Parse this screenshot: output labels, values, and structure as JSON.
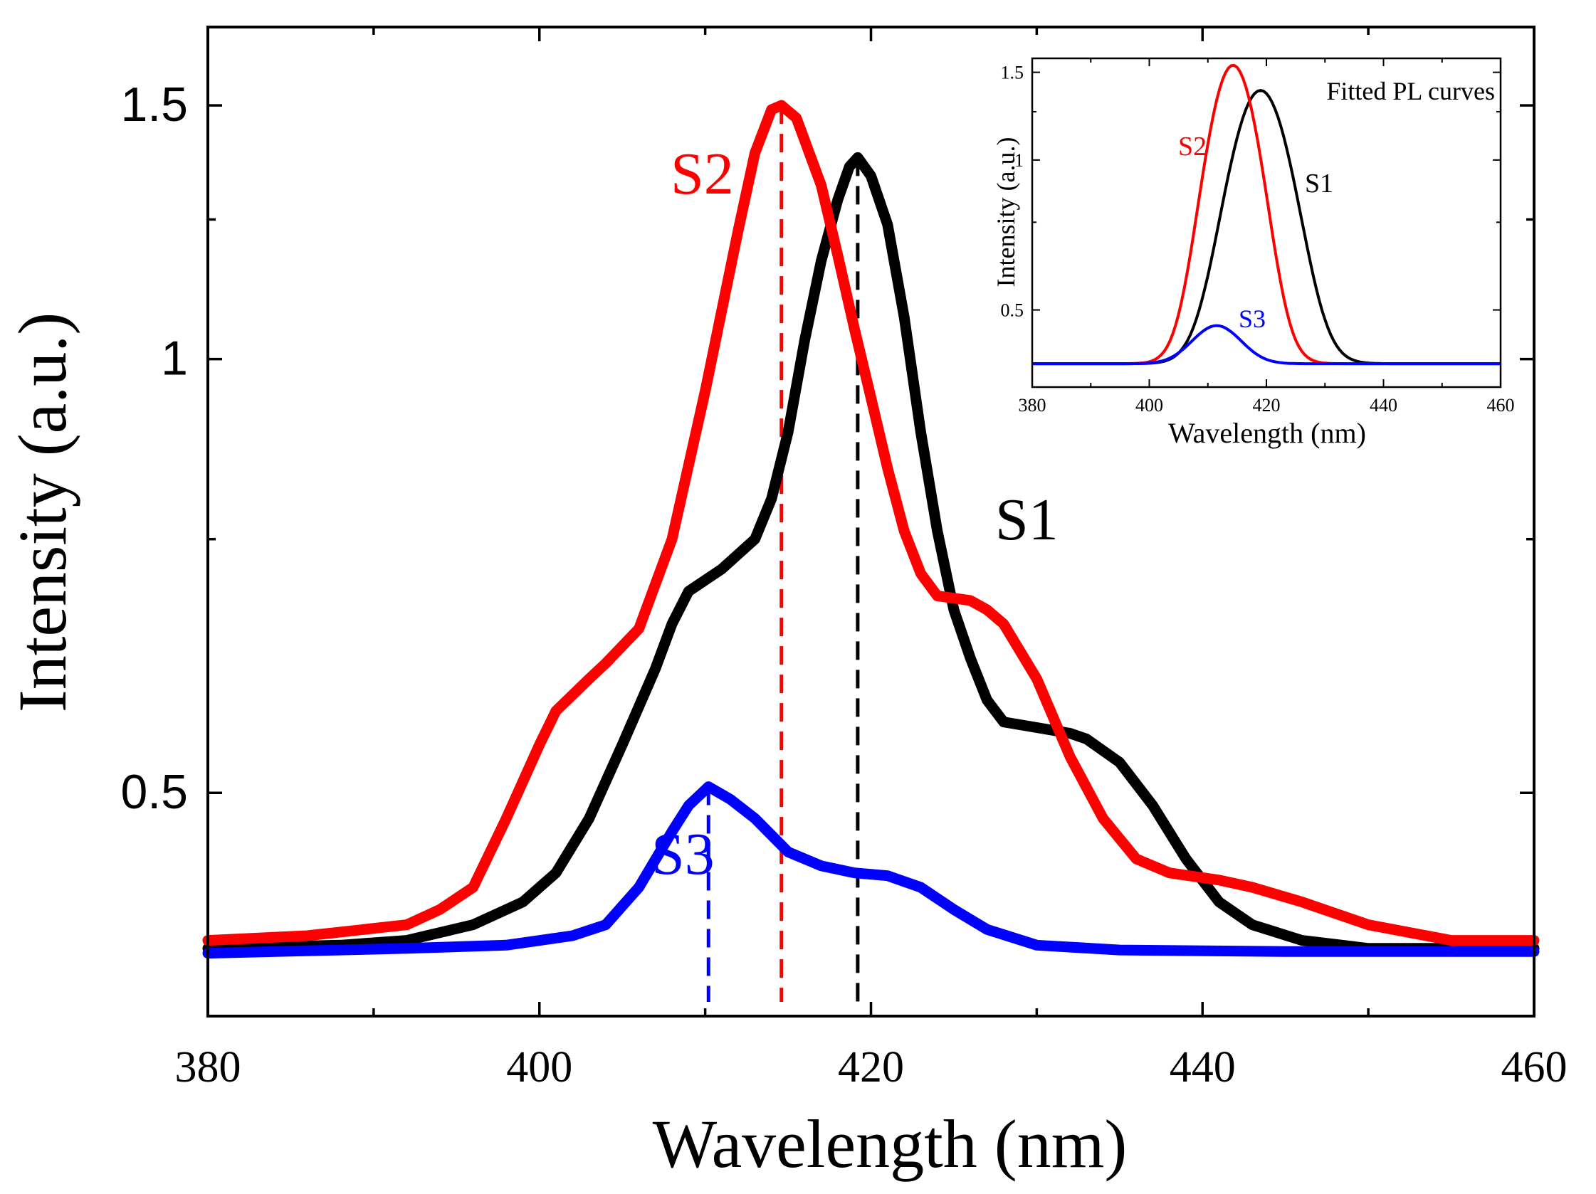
{
  "chart_data": [
    {
      "type": "line",
      "title": "",
      "xlabel": "Wavelength (nm)",
      "ylabel": "Intensity (a.u.)",
      "xlim": [
        380,
        460
      ],
      "ylim": [
        0.35,
        1.7
      ],
      "x_ticks": [
        380,
        400,
        420,
        440,
        460
      ],
      "x_tick_labels": [
        "380",
        "400",
        "420",
        "440",
        "460"
      ],
      "y_ticks": [
        0.5,
        1,
        1.5
      ],
      "y_tick_labels": [
        "0.5",
        "1",
        "1.5"
      ],
      "series": [
        {
          "name": "S1",
          "color": "#000000",
          "peak_wavelength": 419.2,
          "points": [
            [
              380,
              0.39
            ],
            [
              388,
              0.392
            ],
            [
              392,
              0.395
            ],
            [
              396,
              0.405
            ],
            [
              399,
              0.42
            ],
            [
              401,
              0.44
            ],
            [
              403,
              0.48
            ],
            [
              405,
              0.54
            ],
            [
              407,
              0.61
            ],
            [
              408,
              0.655
            ],
            [
              409,
              0.69
            ],
            [
              411,
              0.715
            ],
            [
              413,
              0.75
            ],
            [
              414,
              0.8
            ],
            [
              415,
              0.89
            ],
            [
              416,
              1.03
            ],
            [
              417,
              1.17
            ],
            [
              418,
              1.29
            ],
            [
              418.7,
              1.36
            ],
            [
              419.2,
              1.38
            ],
            [
              420,
              1.34
            ],
            [
              421,
              1.24
            ],
            [
              422,
              1.07
            ],
            [
              423,
              0.89
            ],
            [
              424,
              0.76
            ],
            [
              425,
              0.67
            ],
            [
              426,
              0.62
            ],
            [
              427,
              0.58
            ],
            [
              428,
              0.56
            ],
            [
              430,
              0.555
            ],
            [
              432,
              0.55
            ],
            [
              433,
              0.545
            ],
            [
              435,
              0.525
            ],
            [
              437,
              0.49
            ],
            [
              439,
              0.45
            ],
            [
              441,
              0.42
            ],
            [
              443,
              0.405
            ],
            [
              446,
              0.395
            ],
            [
              450,
              0.39
            ],
            [
              460,
              0.39
            ]
          ]
        },
        {
          "name": "S2",
          "color": "#ff0000",
          "peak_wavelength": 414.6,
          "points": [
            [
              380,
              0.395
            ],
            [
              386,
              0.398
            ],
            [
              392,
              0.405
            ],
            [
              394,
              0.415
            ],
            [
              396,
              0.43
            ],
            [
              398,
              0.48
            ],
            [
              400,
              0.54
            ],
            [
              401,
              0.57
            ],
            [
              403,
              0.6
            ],
            [
              404,
              0.615
            ],
            [
              406,
              0.65
            ],
            [
              408,
              0.75
            ],
            [
              410,
              0.95
            ],
            [
              412,
              1.23
            ],
            [
              413,
              1.39
            ],
            [
              414,
              1.49
            ],
            [
              414.6,
              1.5
            ],
            [
              415.5,
              1.47
            ],
            [
              417,
              1.32
            ],
            [
              418,
              1.18
            ],
            [
              419,
              1.05
            ],
            [
              420,
              0.94
            ],
            [
              421,
              0.84
            ],
            [
              422,
              0.76
            ],
            [
              423,
              0.71
            ],
            [
              424,
              0.685
            ],
            [
              426,
              0.68
            ],
            [
              427,
              0.67
            ],
            [
              428,
              0.655
            ],
            [
              430,
              0.6
            ],
            [
              432,
              0.53
            ],
            [
              434,
              0.48
            ],
            [
              436,
              0.45
            ],
            [
              438,
              0.44
            ],
            [
              441,
              0.435
            ],
            [
              443,
              0.43
            ],
            [
              446,
              0.42
            ],
            [
              450,
              0.405
            ],
            [
              455,
              0.395
            ],
            [
              460,
              0.395
            ]
          ]
        },
        {
          "name": "S3",
          "color": "#0000ff",
          "peak_wavelength": 410.2,
          "points": [
            [
              380,
              0.387
            ],
            [
              392,
              0.39
            ],
            [
              398,
              0.392
            ],
            [
              402,
              0.398
            ],
            [
              404,
              0.405
            ],
            [
              406,
              0.43
            ],
            [
              408,
              0.47
            ],
            [
              409,
              0.49
            ],
            [
              410.2,
              0.505
            ],
            [
              411.5,
              0.495
            ],
            [
              413,
              0.48
            ],
            [
              415,
              0.455
            ],
            [
              417,
              0.445
            ],
            [
              419,
              0.44
            ],
            [
              421,
              0.438
            ],
            [
              423,
              0.43
            ],
            [
              425,
              0.415
            ],
            [
              427,
              0.402
            ],
            [
              430,
              0.392
            ],
            [
              435,
              0.389
            ],
            [
              445,
              0.388
            ],
            [
              460,
              0.388
            ]
          ]
        }
      ],
      "peak_markers": [
        {
          "series": "S1",
          "x": 419.2,
          "color": "#000000"
        },
        {
          "series": "S2",
          "x": 414.6,
          "color": "#ff0000"
        },
        {
          "series": "S3",
          "x": 410.2,
          "color": "#0000ff"
        }
      ],
      "annotations": [
        "S1",
        "S2",
        "S3"
      ]
    },
    {
      "type": "line",
      "title": "Fitted PL curves",
      "xlabel": "Wavelength (nm)",
      "ylabel": "Intensity (a.u.)",
      "xlim": [
        380,
        460
      ],
      "ylim": [
        0.35,
        1.6
      ],
      "x_ticks": [
        380,
        400,
        420,
        440,
        460
      ],
      "x_tick_labels": [
        "380",
        "400",
        "420",
        "440",
        "460"
      ],
      "y_ticks": [
        0.5,
        1,
        1.5
      ],
      "y_tick_labels": [
        "0.5",
        "1",
        "1.5"
      ],
      "series": [
        {
          "name": "S1",
          "color": "#000000",
          "model": "gaussian",
          "center": 419.0,
          "sigma": 5.0,
          "baseline": 0.39,
          "amplitude": 0.99
        },
        {
          "name": "S2",
          "color": "#ff0000",
          "model": "gaussian",
          "center": 414.3,
          "sigma": 4.2,
          "baseline": 0.39,
          "amplitude": 1.16
        },
        {
          "name": "S3",
          "color": "#0000ff",
          "model": "gaussian",
          "center": 411.5,
          "sigma": 4.0,
          "baseline": 0.39,
          "amplitude": 0.075
        }
      ],
      "annotations": [
        "S1",
        "S2",
        "S3"
      ]
    }
  ]
}
